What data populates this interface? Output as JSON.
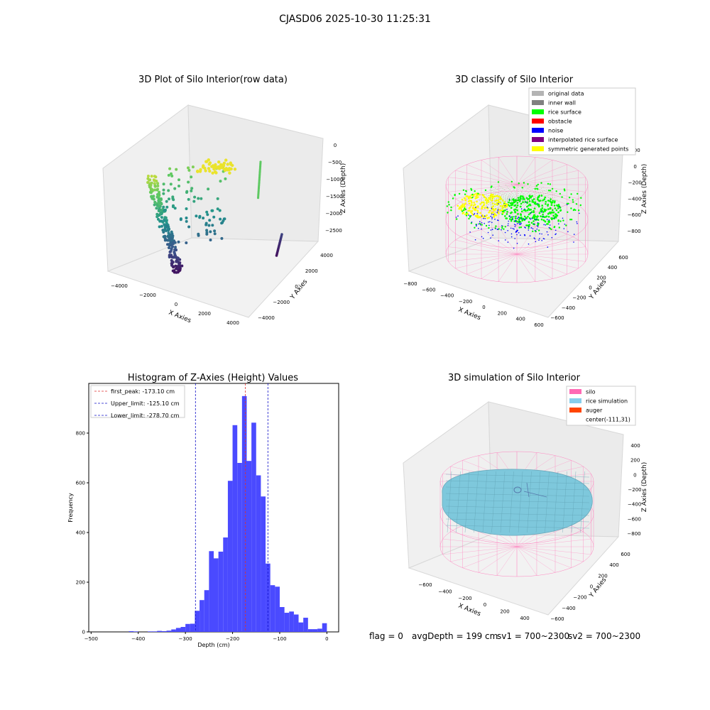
{
  "suptitle": "CJASD06 2025-10-30 11:25:31",
  "colors": {
    "hist_bar": "#4a4aff",
    "peak_line": "#e03030",
    "limit_line": "#1010c8",
    "pink_wire": "#ff85c0",
    "rice_green": "#00ff00",
    "noise_blue": "#0000ff",
    "yellow": "#ffff00",
    "rice_sim": "#7ec8dc"
  },
  "chart_data": [
    {
      "id": "raw",
      "type": "scatter",
      "title": "3D Plot of Silo Interior(row data)",
      "xlabel": "X Axies",
      "ylabel": "Y Axies",
      "zlabel": "Z Axies (Depth)",
      "x_ticks": [
        "-4000",
        "-2000",
        "0",
        "2000",
        "4000"
      ],
      "y_ticks": [
        "-4000",
        "-2000",
        "0",
        "2000",
        "4000"
      ],
      "z_ticks": [
        "0",
        "-500",
        "-1000",
        "-1500",
        "-2000",
        "-2500"
      ],
      "colormap": "viridis"
    },
    {
      "id": "classify",
      "type": "scatter",
      "title": "3D classify of Silo Interior",
      "xlabel": "X Axies",
      "ylabel": "Y Axies",
      "zlabel": "Z Axies (Depth)",
      "x_ticks": [
        "-800",
        "-600",
        "-400",
        "-200",
        "0",
        "200",
        "400",
        "600"
      ],
      "y_ticks": [
        "-600",
        "-400",
        "-200",
        "0",
        "200",
        "400",
        "600"
      ],
      "z_ticks": [
        "200",
        "0",
        "-200",
        "-400",
        "-600",
        "-800"
      ],
      "legend": [
        {
          "label": "original data",
          "color": "#b4b4b4"
        },
        {
          "label": "inner wall",
          "color": "#808080"
        },
        {
          "label": "rice surface",
          "color": "#00ff00"
        },
        {
          "label": "obstacle",
          "color": "#ff0000"
        },
        {
          "label": "noise",
          "color": "#0000ff"
        },
        {
          "label": "interpolated rice surface",
          "color": "#800080"
        },
        {
          "label": "symmetric generated points",
          "color": "#ffff00"
        }
      ],
      "legend_position": "top-right"
    },
    {
      "id": "hist",
      "type": "bar",
      "title": "Histogram of Z-Axies (Height) Values",
      "xlabel": "Depth (cm)",
      "ylabel": "Frequency",
      "bin_width": 10,
      "bin_starts": [
        -420,
        -410,
        -380,
        -370,
        -360,
        -350,
        -340,
        -330,
        -320,
        -310,
        -300,
        -290,
        -280,
        -270,
        -260,
        -250,
        -240,
        -230,
        -220,
        -210,
        -200,
        -190,
        -180,
        -170,
        -160,
        -150,
        -140,
        -130,
        -120,
        -110,
        -100,
        -90,
        -80,
        -70,
        -60,
        -50,
        -40,
        -30,
        -20,
        -10
      ],
      "values": [
        3,
        2,
        2,
        2,
        4,
        3,
        5,
        10,
        16,
        20,
        32,
        33,
        85,
        128,
        168,
        325,
        296,
        323,
        380,
        608,
        832,
        680,
        949,
        688,
        842,
        630,
        545,
        275,
        188,
        182,
        100,
        77,
        82,
        70,
        38,
        57,
        11,
        11,
        13,
        35
      ],
      "xlim": [
        -505,
        25
      ],
      "ylim": [
        0,
        1000
      ],
      "x_ticks": [
        -500,
        -400,
        -300,
        -200,
        -100,
        0
      ],
      "y_ticks": [
        0,
        200,
        400,
        600,
        800
      ],
      "vlines": [
        {
          "label": "first_peak: -173.10 cm",
          "x": -173.1,
          "color": "#e03030"
        },
        {
          "label": "Upper_limit: -125.10 cm",
          "x": -125.1,
          "color": "#1010c8"
        },
        {
          "label": "Lower_limit: -278.70 cm",
          "x": -278.7,
          "color": "#1010c8"
        }
      ],
      "legend_position": "top-left"
    },
    {
      "id": "sim",
      "type": "surface",
      "title": "3D simulation of Silo Interior",
      "xlabel": "X Axies",
      "ylabel": "Y Axies",
      "zlabel": "Z Axies (Depth)",
      "x_ticks": [
        "-600",
        "-400",
        "-200",
        "0",
        "200",
        "400"
      ],
      "y_ticks": [
        "-600",
        "-400",
        "-200",
        "0",
        "200",
        "400",
        "600"
      ],
      "z_ticks": [
        "400",
        "200",
        "0",
        "-200",
        "-400",
        "-600",
        "-800"
      ],
      "legend": [
        {
          "label": "silo",
          "color": "#ff69b4"
        },
        {
          "label": "rice simulation",
          "color": "#87ceeb"
        },
        {
          "label": "auger",
          "color": "#ff4500"
        },
        {
          "label": "center(-111,31)",
          "color": ""
        }
      ],
      "legend_position": "top-right"
    }
  ],
  "status": {
    "flag": "flag = 0",
    "avg": "avgDepth = 199 cm",
    "sv1": "sv1 = 700~2300",
    "sv2": "sv2 = 700~2300"
  }
}
